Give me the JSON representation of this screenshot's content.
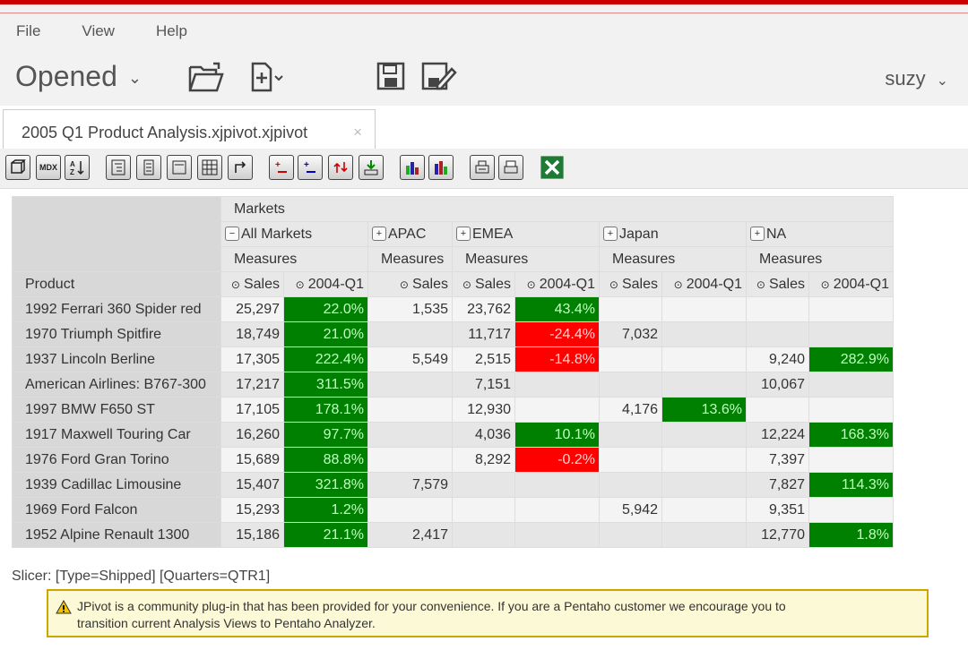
{
  "menu": [
    "File",
    "View",
    "Help"
  ],
  "header": {
    "opened_label": "Opened",
    "user": "suzy"
  },
  "tab": {
    "title": "2005 Q1 Product Analysis.xjpivot.xjpivot",
    "close": "×"
  },
  "toolbar": {
    "mdx_label": "MDX"
  },
  "pivot": {
    "markets_label": "Markets",
    "regions": [
      "All Markets",
      "APAC",
      "EMEA",
      "Japan",
      "NA"
    ],
    "measures_label": "Measures",
    "product_label": "Product",
    "sales_label": "Sales",
    "q_label": "2004-Q1",
    "rows": [
      {
        "name": "1992 Ferrari 360 Spider red",
        "all_s": "25,297",
        "all_q": "22.0%",
        "apac": "1,535",
        "emea_s": "23,762",
        "emea_q": "43.4%",
        "jp_s": "",
        "jp_q": "",
        "na_s": "",
        "na_q": ""
      },
      {
        "name": "1970 Triumph Spitfire",
        "all_s": "18,749",
        "all_q": "21.0%",
        "apac": "",
        "emea_s": "11,717",
        "emea_q": "-24.4%",
        "jp_s": "7,032",
        "jp_q": "",
        "na_s": "",
        "na_q": ""
      },
      {
        "name": "1937 Lincoln Berline",
        "all_s": "17,305",
        "all_q": "222.4%",
        "apac": "5,549",
        "emea_s": "2,515",
        "emea_q": "-14.8%",
        "jp_s": "",
        "jp_q": "",
        "na_s": "9,240",
        "na_q": "282.9%"
      },
      {
        "name": "American Airlines: B767-300",
        "all_s": "17,217",
        "all_q": "311.5%",
        "apac": "",
        "emea_s": "7,151",
        "emea_q": "",
        "jp_s": "",
        "jp_q": "",
        "na_s": "10,067",
        "na_q": ""
      },
      {
        "name": "1997 BMW F650 ST",
        "all_s": "17,105",
        "all_q": "178.1%",
        "apac": "",
        "emea_s": "12,930",
        "emea_q": "",
        "jp_s": "4,176",
        "jp_q": "13.6%",
        "na_s": "",
        "na_q": ""
      },
      {
        "name": "1917 Maxwell Touring Car",
        "all_s": "16,260",
        "all_q": "97.7%",
        "apac": "",
        "emea_s": "4,036",
        "emea_q": "10.1%",
        "jp_s": "",
        "jp_q": "",
        "na_s": "12,224",
        "na_q": "168.3%"
      },
      {
        "name": "1976 Ford Gran Torino",
        "all_s": "15,689",
        "all_q": "88.8%",
        "apac": "",
        "emea_s": "8,292",
        "emea_q": "-0.2%",
        "jp_s": "",
        "jp_q": "",
        "na_s": "7,397",
        "na_q": ""
      },
      {
        "name": "1939 Cadillac Limousine",
        "all_s": "15,407",
        "all_q": "321.8%",
        "apac": "7,579",
        "emea_s": "",
        "emea_q": "",
        "jp_s": "",
        "jp_q": "",
        "na_s": "7,827",
        "na_q": "114.3%"
      },
      {
        "name": "1969 Ford Falcon",
        "all_s": "15,293",
        "all_q": "1.2%",
        "apac": "",
        "emea_s": "",
        "emea_q": "",
        "jp_s": "5,942",
        "jp_q": "",
        "na_s": "9,351",
        "na_q": ""
      },
      {
        "name": "1952 Alpine Renault 1300",
        "all_s": "15,186",
        "all_q": "21.1%",
        "apac": "2,417",
        "emea_s": "",
        "emea_q": "",
        "jp_s": "",
        "jp_q": "",
        "na_s": "12,770",
        "na_q": "1.8%"
      }
    ]
  },
  "slicer": "Slicer: [Type=Shipped] [Quarters=QTR1]",
  "notice": {
    "line1": "JPivot is a community plug-in that has been provided for your convenience. If you are a Pentaho customer we encourage you to",
    "line2": "transition current Analysis Views to Pentaho Analyzer."
  },
  "colors": {
    "accent": "#cc0000",
    "positive": "#008000",
    "negative": "#ff0000"
  }
}
